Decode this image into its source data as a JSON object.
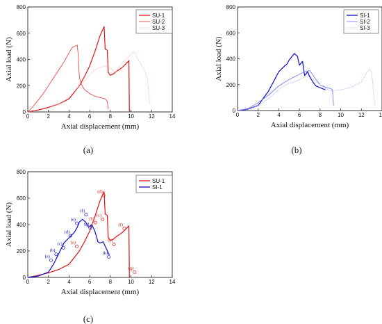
{
  "chart_data": [
    {
      "id": "a",
      "panel_label": "(a)",
      "type": "line",
      "xlabel": "Axial displacement (mm)",
      "ylabel": "Axial load (N)",
      "xlim": [
        0,
        14
      ],
      "ylim": [
        0,
        800
      ],
      "xticks": [
        0,
        2,
        4,
        6,
        8,
        10,
        12,
        14
      ],
      "yticks": [
        0,
        200,
        400,
        600,
        800
      ],
      "legend_position": "top-right",
      "series": [
        {
          "name": "SU-1",
          "color": "#e01010",
          "style": "solid",
          "x": [
            0,
            1,
            2,
            3,
            4,
            5,
            5.5,
            6,
            6.5,
            7,
            7.4,
            7.5,
            7.7,
            7.8,
            8,
            8.3,
            8.6,
            9,
            9.3,
            9.6,
            9.8,
            9.85
          ],
          "y": [
            0,
            15,
            35,
            60,
            100,
            200,
            270,
            350,
            460,
            580,
            650,
            480,
            470,
            300,
            280,
            290,
            310,
            330,
            350,
            375,
            390,
            0
          ]
        },
        {
          "name": "SU-2",
          "color": "#f03030",
          "style": "solid-thin",
          "x": [
            0,
            0.5,
            1,
            1.5,
            2,
            2.5,
            3,
            3.5,
            4,
            4.3,
            4.5,
            4.7,
            4.8,
            4.9,
            5.0,
            5.2,
            5.5,
            6,
            6.5,
            7,
            7.5,
            7.7,
            7.8
          ],
          "y": [
            0,
            40,
            90,
            140,
            200,
            260,
            320,
            380,
            450,
            490,
            500,
            505,
            510,
            420,
            260,
            210,
            170,
            140,
            120,
            110,
            100,
            80,
            20
          ]
        },
        {
          "name": "SU-3",
          "color": "#f4a0a0",
          "style": "dotted",
          "x": [
            0,
            1,
            2,
            3,
            4,
            5,
            5.5,
            6,
            6.5,
            7,
            7.5,
            8,
            8.5,
            9,
            9.5,
            10,
            10.3,
            10.6,
            11,
            11.3,
            11.6,
            11.8
          ],
          "y": [
            0,
            10,
            30,
            60,
            110,
            200,
            240,
            280,
            320,
            340,
            350,
            330,
            300,
            360,
            400,
            440,
            460,
            410,
            360,
            320,
            250,
            60
          ]
        }
      ]
    },
    {
      "id": "b",
      "panel_label": "(b)",
      "type": "line",
      "xlabel": "Axial displacement (mm)",
      "ylabel": "Axial load (N)",
      "xlim": [
        0,
        14
      ],
      "ylim": [
        0,
        800
      ],
      "xticks": [
        0,
        2,
        4,
        6,
        8,
        10,
        12,
        14
      ],
      "yticks": [
        0,
        200,
        400,
        600,
        800
      ],
      "legend_position": "top-right",
      "series": [
        {
          "name": "SI-1",
          "color": "#0a0ad0",
          "style": "solid",
          "x": [
            0,
            1,
            2,
            3,
            4,
            4.5,
            4.8,
            5,
            5.5,
            5.8,
            6,
            6.3,
            6.5,
            6.8,
            7,
            7.3,
            7.6,
            7.9,
            8.2,
            8.5
          ],
          "y": [
            0,
            10,
            40,
            150,
            300,
            340,
            360,
            390,
            440,
            420,
            350,
            380,
            270,
            300,
            260,
            220,
            190,
            180,
            170,
            160
          ]
        },
        {
          "name": "SI-2",
          "color": "#6070f0",
          "style": "solid-thin",
          "x": [
            0,
            1,
            2,
            3,
            4,
            5,
            5.5,
            6,
            6.5,
            7,
            7.5,
            8,
            8.5,
            9,
            9.2,
            9.3
          ],
          "y": [
            0,
            15,
            60,
            120,
            190,
            240,
            260,
            280,
            300,
            310,
            250,
            200,
            180,
            170,
            160,
            40
          ]
        },
        {
          "name": "SI-3",
          "color": "#a0a8f4",
          "style": "dotted",
          "x": [
            0,
            1,
            2,
            3,
            4,
            4.5,
            5,
            5.5,
            6,
            6.5,
            7,
            7.5,
            8,
            8.5,
            9,
            10,
            11,
            12,
            12.5,
            12.8,
            13,
            13.3
          ],
          "y": [
            0,
            10,
            40,
            90,
            160,
            190,
            210,
            220,
            240,
            260,
            270,
            230,
            200,
            170,
            150,
            160,
            180,
            220,
            290,
            320,
            300,
            40
          ]
        }
      ]
    },
    {
      "id": "c",
      "panel_label": "(c)",
      "type": "line",
      "xlabel": "Axial displacement (mm)",
      "ylabel": "Axial load (N)",
      "xlim": [
        0,
        14
      ],
      "ylim": [
        0,
        800
      ],
      "xticks": [
        0,
        2,
        4,
        6,
        8,
        10,
        12,
        14
      ],
      "yticks": [
        0,
        200,
        400,
        600,
        800
      ],
      "legend_position": "top-right",
      "series": [
        {
          "name": "SU-1",
          "color": "#e01010",
          "style": "solid",
          "x": [
            0,
            1,
            2,
            3,
            4,
            5,
            5.5,
            6,
            6.5,
            7,
            7.4,
            7.5,
            7.7,
            7.8,
            8,
            8.3,
            8.6,
            9,
            9.3,
            9.6,
            9.8,
            9.85
          ],
          "y": [
            0,
            15,
            35,
            60,
            100,
            200,
            270,
            350,
            460,
            580,
            650,
            480,
            470,
            300,
            280,
            290,
            310,
            330,
            350,
            375,
            390,
            0
          ]
        },
        {
          "name": "SI-1",
          "color": "#0a0ad0",
          "style": "solid",
          "x": [
            0,
            1,
            2,
            2.5,
            3,
            3.5,
            4,
            4.5,
            4.8,
            5,
            5.3,
            5.6,
            5.9,
            6.2,
            6.5,
            6.8,
            7,
            7.3,
            7.6,
            7.9
          ],
          "y": [
            0,
            10,
            40,
            100,
            180,
            260,
            300,
            340,
            380,
            420,
            440,
            420,
            380,
            400,
            350,
            270,
            260,
            270,
            220,
            170
          ]
        }
      ],
      "annotations": [
        {
          "text": "(a)",
          "series": "SI-1",
          "x": 1.9,
          "y": 110,
          "color": "#0a0ad0"
        },
        {
          "text": "(b)",
          "series": "SI-1",
          "x": 2.4,
          "y": 155,
          "color": "#0a0ad0"
        },
        {
          "text": "(c)",
          "series": "SI-1",
          "x": 3.1,
          "y": 205,
          "color": "#0a0ad0"
        },
        {
          "text": "(d)",
          "series": "SI-1",
          "x": 3.8,
          "y": 295,
          "color": "#0a0ad0"
        },
        {
          "text": "(e)",
          "series": "SI-1",
          "x": 4.4,
          "y": 390,
          "color": "#0a0ad0"
        },
        {
          "text": "(f)",
          "series": "SI-1",
          "x": 5.3,
          "y": 455,
          "color": "#0a0ad0"
        },
        {
          "text": "(g)",
          "series": "SI-1",
          "x": 5.7,
          "y": 355,
          "color": "#0a0ad0"
        },
        {
          "text": "(h)",
          "series": "SI-1",
          "x": 7.5,
          "y": 135,
          "color": "#0a0ad0"
        },
        {
          "text": "(a)",
          "series": "SU-1",
          "x": 4.4,
          "y": 215,
          "color": "#e01010"
        },
        {
          "text": "(b)",
          "series": "SU-1",
          "x": 6.2,
          "y": 395,
          "color": "#e01010"
        },
        {
          "text": "(c)",
          "series": "SU-1",
          "x": 6.9,
          "y": 420,
          "color": "#e01010"
        },
        {
          "text": "(d)",
          "series": "SU-1",
          "x": 7.0,
          "y": 600,
          "color": "#e01010"
        },
        {
          "text": "(e)",
          "series": "SU-1",
          "x": 8.0,
          "y": 230,
          "color": "#e01010"
        },
        {
          "text": "(f)",
          "series": "SU-1",
          "x": 9.0,
          "y": 350,
          "color": "#e01010"
        },
        {
          "text": "(g)",
          "series": "SU-1",
          "x": 10.0,
          "y": 20,
          "color": "#e01010"
        }
      ]
    }
  ]
}
